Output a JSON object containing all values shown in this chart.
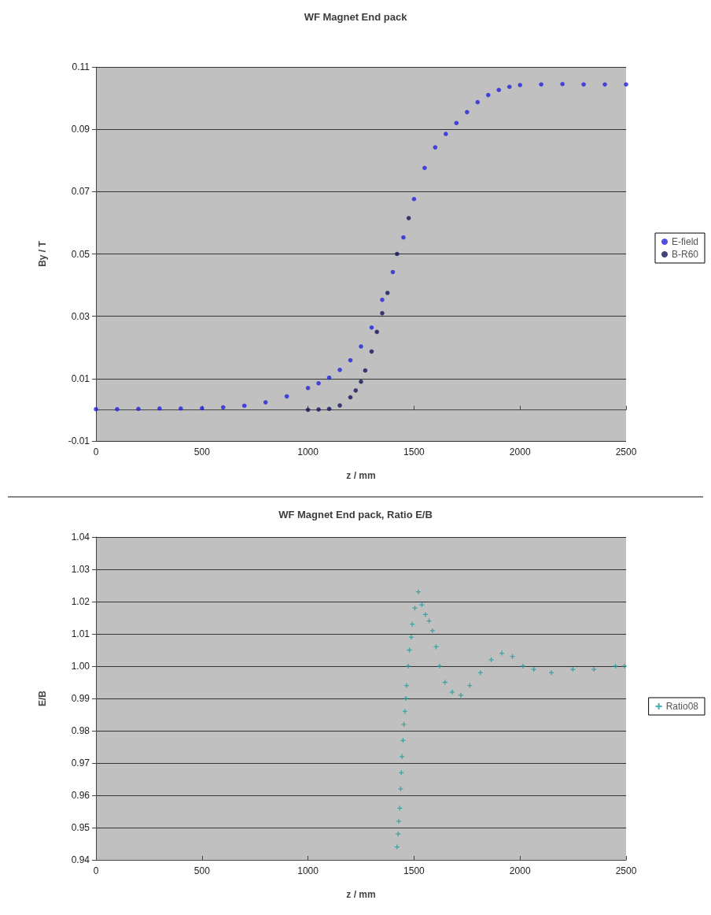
{
  "chart_data": [
    {
      "type": "scatter",
      "title": "WF Magnet End pack",
      "xlabel": "z / mm",
      "ylabel": "By / T",
      "xlim": [
        0,
        2500
      ],
      "xticks": [
        0,
        500,
        1000,
        1500,
        2000,
        2500
      ],
      "ylim": [
        -0.01,
        0.11
      ],
      "yticks": [
        -0.01,
        0.01,
        0.03,
        0.05,
        0.07,
        0.09,
        0.11
      ],
      "grid": "y",
      "legend": "right",
      "marker": "circle",
      "series": [
        {
          "name": "E-field",
          "color": "#2222dd",
          "x": [
            0,
            100,
            200,
            300,
            400,
            500,
            600,
            700,
            800,
            900,
            1000,
            1050,
            1100,
            1150,
            1200,
            1250,
            1300,
            1350,
            1400,
            1450,
            1500,
            1550,
            1600,
            1650,
            1700,
            1750,
            1800,
            1850,
            1900,
            1950,
            2000,
            2100,
            2200,
            2300,
            2400,
            2500
          ],
          "values": [
            0.0002,
            0.0002,
            0.0003,
            0.0004,
            0.0004,
            0.0005,
            0.0008,
            0.0013,
            0.0024,
            0.0043,
            0.007,
            0.0085,
            0.0103,
            0.0128,
            0.0159,
            0.0203,
            0.0264,
            0.0353,
            0.0442,
            0.0553,
            0.0676,
            0.0776,
            0.0842,
            0.0885,
            0.092,
            0.0955,
            0.0987,
            0.101,
            0.1026,
            0.1036,
            0.1042,
            0.1044,
            0.1045,
            0.1044,
            0.1044,
            0.1044
          ]
        },
        {
          "name": "B-R60",
          "color": "#14145a",
          "x": [
            1000,
            1050,
            1100,
            1150,
            1200,
            1225,
            1250,
            1270,
            1300,
            1325,
            1350,
            1375,
            1420,
            1475
          ],
          "values": [
            0,
            0.0001,
            0.0003,
            0.0014,
            0.004,
            0.0062,
            0.009,
            0.0126,
            0.0187,
            0.025,
            0.031,
            0.0375,
            0.05,
            0.0615
          ]
        }
      ]
    },
    {
      "type": "scatter",
      "title": "WF Magnet End pack, Ratio E/B",
      "xlabel": "z / mm",
      "ylabel": "E/B",
      "xlim": [
        0,
        2500
      ],
      "xticks": [
        0,
        500,
        1000,
        1500,
        2000,
        2500
      ],
      "ylim": [
        0.94,
        1.04
      ],
      "yticks": [
        0.94,
        0.95,
        0.96,
        0.97,
        0.98,
        0.99,
        {
          "value": 1,
          "label": "1.00"
        },
        1.01,
        1.02,
        1.03,
        1.04
      ],
      "grid": "y",
      "legend": "right",
      "marker": "cross",
      "series": [
        {
          "name": "Ratio08",
          "color": "#1f9a9a",
          "x": [
            1420,
            1425,
            1428,
            1433,
            1437,
            1440,
            1443,
            1448,
            1452,
            1457,
            1462,
            1465,
            1473,
            1478,
            1487,
            1492,
            1504,
            1520,
            1537,
            1554,
            1571,
            1587,
            1604,
            1621,
            1646,
            1680,
            1721,
            1763,
            1813,
            1864,
            1914,
            1964,
            2014,
            2065,
            2148,
            2249,
            2349,
            2450,
            2492
          ],
          "values": [
            0.944,
            0.948,
            0.952,
            0.956,
            0.962,
            0.967,
            0.972,
            0.977,
            0.982,
            0.986,
            0.99,
            0.994,
            1.0,
            1.005,
            1.009,
            1.013,
            1.018,
            1.023,
            1.019,
            1.016,
            1.014,
            1.011,
            1.006,
            1.0,
            0.995,
            0.992,
            0.991,
            0.994,
            0.998,
            1.002,
            1.004,
            1.003,
            1.0,
            0.999,
            0.998,
            0.999,
            0.999,
            1.0,
            1.0
          ]
        }
      ]
    }
  ]
}
